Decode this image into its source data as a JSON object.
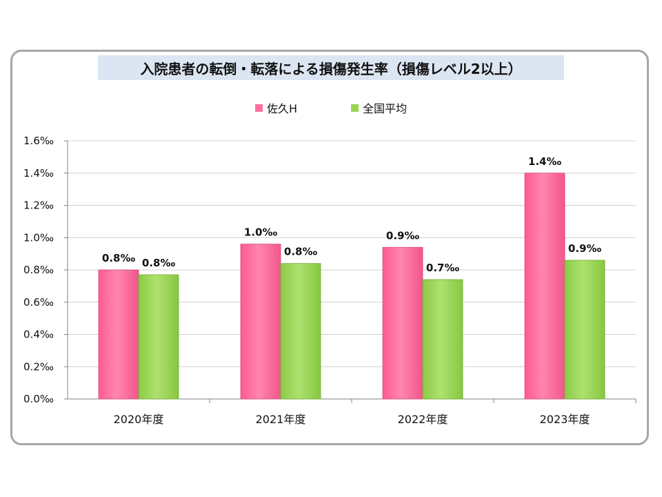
{
  "chart_data": {
    "type": "bar",
    "title": "入院患者の転倒・転落による損傷発生率（損傷レベル2以上）",
    "categories": [
      "2020年度",
      "2021年度",
      "2022年度",
      "2023年度"
    ],
    "series": [
      {
        "name": "佐久H",
        "color": "#ff6f9f",
        "values": [
          0.8,
          0.96,
          0.94,
          1.4
        ],
        "labels": [
          "0.8‰",
          "1.0‰",
          "0.9‰",
          "1.4‰"
        ]
      },
      {
        "name": "全国平均",
        "color": "#99d654",
        "values": [
          0.77,
          0.84,
          0.74,
          0.86
        ],
        "labels": [
          "0.8‰",
          "0.8‰",
          "0.7‰",
          "0.9‰"
        ]
      }
    ],
    "ylim": [
      0,
      1.6
    ],
    "yticks": [
      "0.0‰",
      "0.2‰",
      "0.4‰",
      "0.6‰",
      "0.8‰",
      "1.0‰",
      "1.2‰",
      "1.4‰",
      "1.6‰"
    ],
    "grid": true,
    "legend_position": "top"
  }
}
